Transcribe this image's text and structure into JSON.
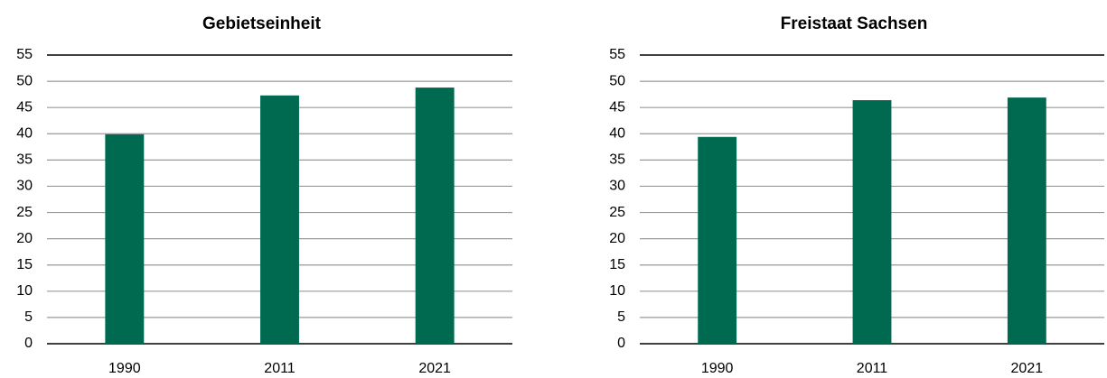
{
  "chart_data": [
    {
      "type": "bar",
      "title": "Gebietseinheit",
      "categories": [
        "1990",
        "2011",
        "2021"
      ],
      "values": [
        39.9,
        47.3,
        48.8
      ],
      "color": "#006a50",
      "ylim": [
        0,
        55
      ],
      "yticks": [
        0,
        5,
        10,
        15,
        20,
        25,
        30,
        35,
        40,
        45,
        50,
        55
      ],
      "grid": true
    },
    {
      "type": "bar",
      "title": "Freistaat Sachsen",
      "categories": [
        "1990",
        "2011",
        "2021"
      ],
      "values": [
        39.4,
        46.4,
        46.9
      ],
      "color": "#006a50",
      "ylim": [
        0,
        55
      ],
      "yticks": [
        0,
        5,
        10,
        15,
        20,
        25,
        30,
        35,
        40,
        45,
        50,
        55
      ],
      "grid": true
    }
  ]
}
